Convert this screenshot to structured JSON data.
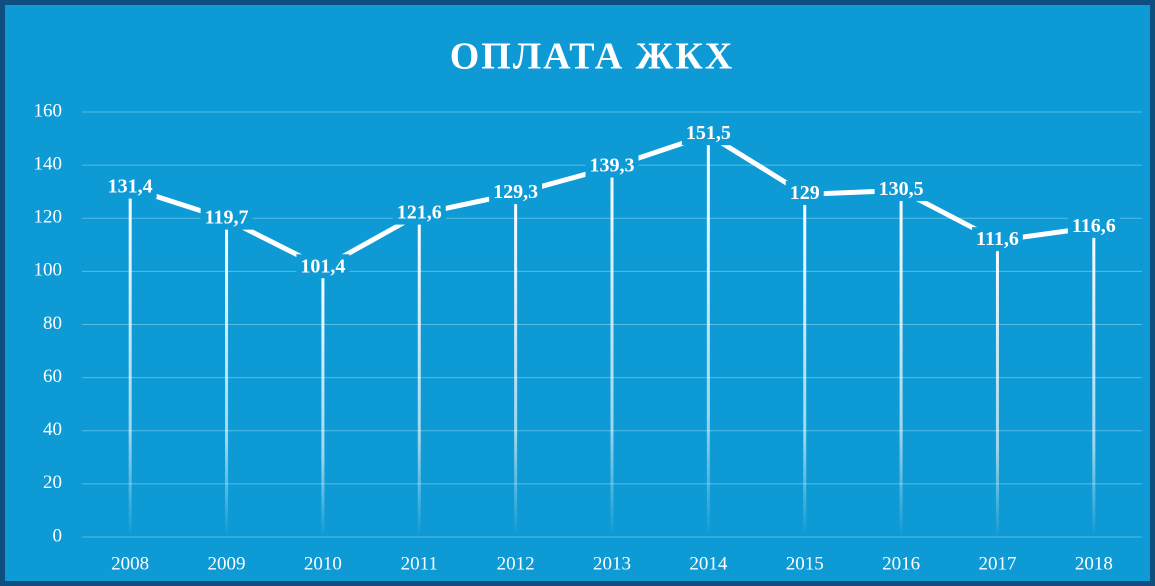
{
  "chart_data": {
    "type": "line",
    "title": "ОПЛАТА ЖКХ",
    "categories": [
      "2008",
      "2009",
      "2010",
      "2011",
      "2012",
      "2013",
      "2014",
      "2015",
      "2016",
      "2017",
      "2018"
    ],
    "values": [
      131.4,
      119.7,
      101.4,
      121.6,
      129.3,
      139.3,
      151.5,
      129,
      130.5,
      111.6,
      116.6
    ],
    "value_labels": [
      "131,4",
      "119,7",
      "101,4",
      "121,6",
      "129,3",
      "139,3",
      "151,5",
      "129",
      "130,5",
      "111,6",
      "116,6"
    ],
    "color": "#ffffff",
    "ylim": [
      0,
      160
    ],
    "yticks": [
      0,
      20,
      40,
      60,
      80,
      100,
      120,
      140,
      160
    ],
    "grid": true
  }
}
